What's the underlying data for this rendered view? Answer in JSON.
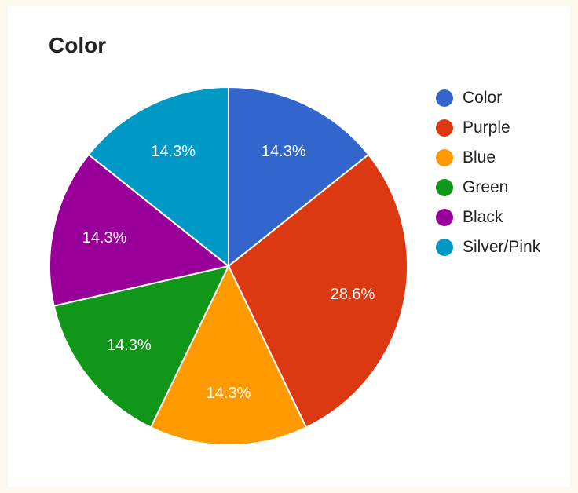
{
  "chart_data": {
    "type": "pie",
    "title": "Color",
    "legend_position": "right",
    "slices": [
      {
        "name": "Color",
        "value": 14.3,
        "label": "14.3%",
        "color": "#3366cc"
      },
      {
        "name": "Purple",
        "value": 28.6,
        "label": "28.6%",
        "color": "#dc3912"
      },
      {
        "name": "Blue",
        "value": 14.3,
        "label": "14.3%",
        "color": "#ff9900"
      },
      {
        "name": "Green",
        "value": 14.3,
        "label": "14.3%",
        "color": "#109618"
      },
      {
        "name": "Black",
        "value": 14.3,
        "label": "14.3%",
        "color": "#990099"
      },
      {
        "name": "Silver/Pink",
        "value": 14.3,
        "label": "14.3%",
        "color": "#0099c6"
      }
    ]
  }
}
